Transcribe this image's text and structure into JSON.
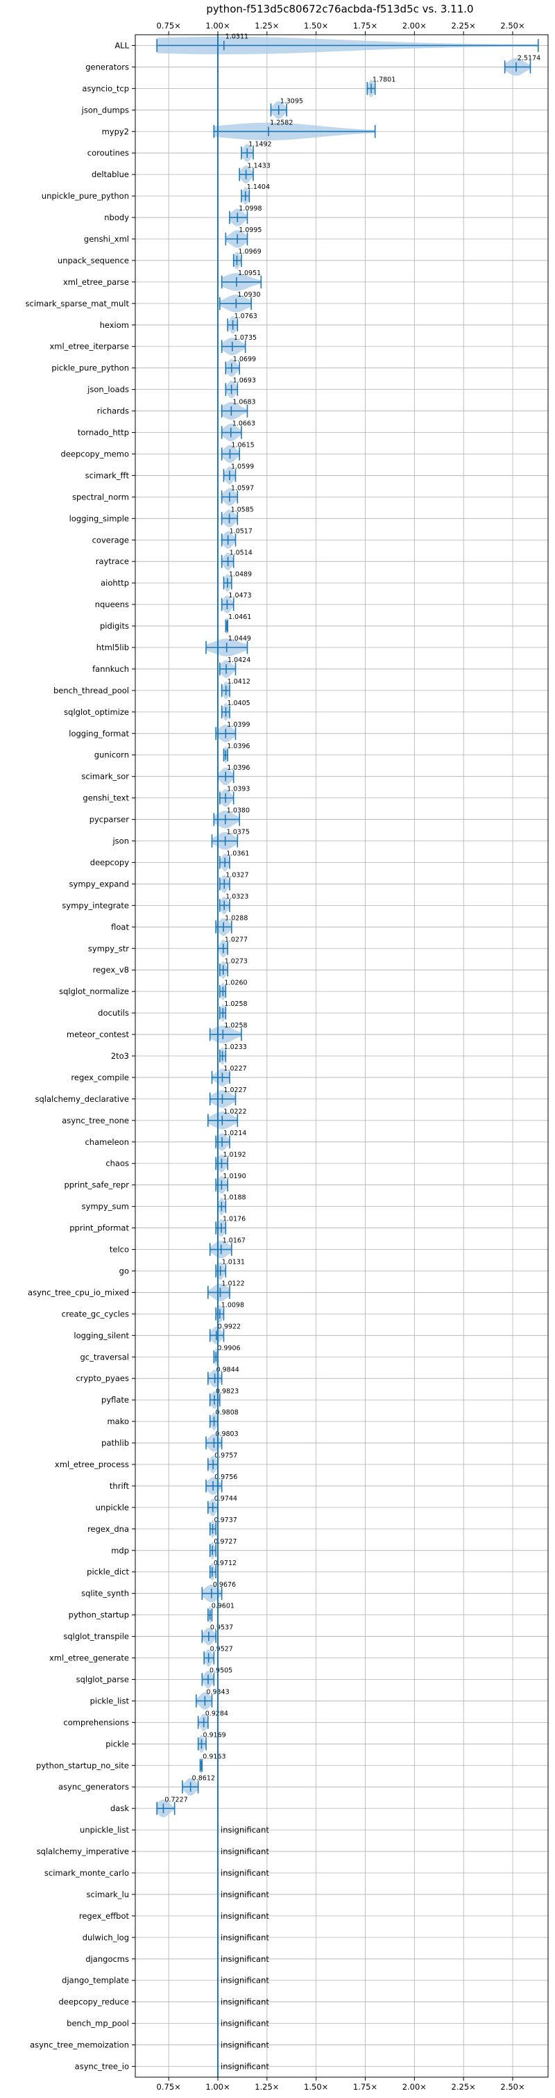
{
  "chart_data": {
    "type": "violin",
    "title": "python-f513d5c80672c76acbda-f513d5c vs. 3.11.0",
    "xlabel": "",
    "ylabel": "",
    "xlim": [
      0.58,
      2.68
    ],
    "xticks": [
      0.75,
      1.0,
      1.25,
      1.5,
      1.75,
      2.0,
      2.25,
      2.5
    ],
    "xtick_labels": [
      "0.75×",
      "1.00×",
      "1.25×",
      "1.50×",
      "1.75×",
      "2.00×",
      "2.25×",
      "2.50×"
    ],
    "reference_line": 1.0,
    "grid": true,
    "accent_color": "#1f77b4",
    "violin_color": "#a9c9e6",
    "insignificant_label": "insignificant",
    "benchmarks": [
      {
        "name": "ALL",
        "value": 1.0311,
        "min": 0.69,
        "max": 2.63,
        "label": "1.0311"
      },
      {
        "name": "generators",
        "value": 2.5174,
        "min": 2.46,
        "max": 2.59,
        "label": "2.5174"
      },
      {
        "name": "asyncio_tcp",
        "value": 1.7801,
        "min": 1.76,
        "max": 1.8,
        "label": "1.7801"
      },
      {
        "name": "json_dumps",
        "value": 1.3095,
        "min": 1.27,
        "max": 1.35,
        "label": "1.3095"
      },
      {
        "name": "mypy2",
        "value": 1.2582,
        "min": 0.98,
        "max": 1.8,
        "label": "1.2582"
      },
      {
        "name": "coroutines",
        "value": 1.1492,
        "min": 1.12,
        "max": 1.18,
        "label": "1.1492"
      },
      {
        "name": "deltablue",
        "value": 1.1433,
        "min": 1.11,
        "max": 1.18,
        "label": "1.1433"
      },
      {
        "name": "unpickle_pure_python",
        "value": 1.1404,
        "min": 1.12,
        "max": 1.16,
        "label": "1.1404"
      },
      {
        "name": "nbody",
        "value": 1.0998,
        "min": 1.06,
        "max": 1.15,
        "label": "1.0998"
      },
      {
        "name": "genshi_xml",
        "value": 1.0995,
        "min": 1.04,
        "max": 1.15,
        "label": "1.0995"
      },
      {
        "name": "unpack_sequence",
        "value": 1.0969,
        "min": 1.08,
        "max": 1.12,
        "label": "1.0969"
      },
      {
        "name": "xml_etree_parse",
        "value": 1.0951,
        "min": 1.02,
        "max": 1.22,
        "label": "1.0951"
      },
      {
        "name": "scimark_sparse_mat_mult",
        "value": 1.093,
        "min": 1.01,
        "max": 1.17,
        "label": "1.0930"
      },
      {
        "name": "hexiom",
        "value": 1.0763,
        "min": 1.05,
        "max": 1.1,
        "label": "1.0763"
      },
      {
        "name": "xml_etree_iterparse",
        "value": 1.0735,
        "min": 1.02,
        "max": 1.14,
        "label": "1.0735"
      },
      {
        "name": "pickle_pure_python",
        "value": 1.0699,
        "min": 1.04,
        "max": 1.11,
        "label": "1.0699"
      },
      {
        "name": "json_loads",
        "value": 1.0693,
        "min": 1.04,
        "max": 1.1,
        "label": "1.0693"
      },
      {
        "name": "richards",
        "value": 1.0683,
        "min": 1.02,
        "max": 1.15,
        "label": "1.0683"
      },
      {
        "name": "tornado_http",
        "value": 1.0663,
        "min": 1.02,
        "max": 1.12,
        "label": "1.0663"
      },
      {
        "name": "deepcopy_memo",
        "value": 1.0615,
        "min": 1.02,
        "max": 1.11,
        "label": "1.0615"
      },
      {
        "name": "scimark_fft",
        "value": 1.0599,
        "min": 1.03,
        "max": 1.09,
        "label": "1.0599"
      },
      {
        "name": "spectral_norm",
        "value": 1.0597,
        "min": 1.02,
        "max": 1.1,
        "label": "1.0597"
      },
      {
        "name": "logging_simple",
        "value": 1.0585,
        "min": 1.02,
        "max": 1.1,
        "label": "1.0585"
      },
      {
        "name": "coverage",
        "value": 1.0517,
        "min": 1.02,
        "max": 1.09,
        "label": "1.0517"
      },
      {
        "name": "raytrace",
        "value": 1.0514,
        "min": 1.02,
        "max": 1.08,
        "label": "1.0514"
      },
      {
        "name": "aiohttp",
        "value": 1.0489,
        "min": 1.03,
        "max": 1.07,
        "label": "1.0489"
      },
      {
        "name": "nqueens",
        "value": 1.0473,
        "min": 1.02,
        "max": 1.08,
        "label": "1.0473"
      },
      {
        "name": "pidigits",
        "value": 1.0461,
        "min": 1.04,
        "max": 1.05,
        "label": "1.0461"
      },
      {
        "name": "html5lib",
        "value": 1.0449,
        "min": 0.94,
        "max": 1.15,
        "label": "1.0449"
      },
      {
        "name": "fannkuch",
        "value": 1.0424,
        "min": 1.01,
        "max": 1.09,
        "label": "1.0424"
      },
      {
        "name": "bench_thread_pool",
        "value": 1.0412,
        "min": 1.02,
        "max": 1.06,
        "label": "1.0412"
      },
      {
        "name": "sqlglot_optimize",
        "value": 1.0405,
        "min": 1.02,
        "max": 1.06,
        "label": "1.0405"
      },
      {
        "name": "logging_format",
        "value": 1.0399,
        "min": 0.99,
        "max": 1.09,
        "label": "1.0399"
      },
      {
        "name": "gunicorn",
        "value": 1.0396,
        "min": 1.03,
        "max": 1.05,
        "label": "1.0396"
      },
      {
        "name": "scimark_sor",
        "value": 1.0396,
        "min": 1.0,
        "max": 1.08,
        "label": "1.0396"
      },
      {
        "name": "genshi_text",
        "value": 1.0393,
        "min": 1.01,
        "max": 1.08,
        "label": "1.0393"
      },
      {
        "name": "pycparser",
        "value": 1.038,
        "min": 0.98,
        "max": 1.11,
        "label": "1.0380"
      },
      {
        "name": "json",
        "value": 1.0375,
        "min": 0.97,
        "max": 1.1,
        "label": "1.0375"
      },
      {
        "name": "deepcopy",
        "value": 1.0361,
        "min": 1.01,
        "max": 1.06,
        "label": "1.0361"
      },
      {
        "name": "sympy_expand",
        "value": 1.0327,
        "min": 1.01,
        "max": 1.06,
        "label": "1.0327"
      },
      {
        "name": "sympy_integrate",
        "value": 1.0323,
        "min": 1.01,
        "max": 1.06,
        "label": "1.0323"
      },
      {
        "name": "float",
        "value": 1.0288,
        "min": 0.99,
        "max": 1.07,
        "label": "1.0288"
      },
      {
        "name": "sympy_str",
        "value": 1.0277,
        "min": 1.0,
        "max": 1.05,
        "label": "1.0277"
      },
      {
        "name": "regex_v8",
        "value": 1.0273,
        "min": 1.01,
        "max": 1.05,
        "label": "1.0273"
      },
      {
        "name": "sqlglot_normalize",
        "value": 1.026,
        "min": 1.01,
        "max": 1.04,
        "label": "1.0260"
      },
      {
        "name": "docutils",
        "value": 1.0258,
        "min": 1.01,
        "max": 1.04,
        "label": "1.0258"
      },
      {
        "name": "meteor_contest",
        "value": 1.0258,
        "min": 0.96,
        "max": 1.12,
        "label": "1.0258"
      },
      {
        "name": "2to3",
        "value": 1.0233,
        "min": 1.01,
        "max": 1.04,
        "label": "1.0233"
      },
      {
        "name": "regex_compile",
        "value": 1.0227,
        "min": 0.97,
        "max": 1.06,
        "label": "1.0227"
      },
      {
        "name": "sqlalchemy_declarative",
        "value": 1.0227,
        "min": 0.96,
        "max": 1.09,
        "label": "1.0227"
      },
      {
        "name": "async_tree_none",
        "value": 1.0222,
        "min": 0.95,
        "max": 1.1,
        "label": "1.0222"
      },
      {
        "name": "chameleon",
        "value": 1.0214,
        "min": 0.99,
        "max": 1.06,
        "label": "1.0214"
      },
      {
        "name": "chaos",
        "value": 1.0192,
        "min": 0.99,
        "max": 1.05,
        "label": "1.0192"
      },
      {
        "name": "pprint_safe_repr",
        "value": 1.019,
        "min": 0.99,
        "max": 1.05,
        "label": "1.0190"
      },
      {
        "name": "sympy_sum",
        "value": 1.0188,
        "min": 1.0,
        "max": 1.04,
        "label": "1.0188"
      },
      {
        "name": "pprint_pformat",
        "value": 1.0176,
        "min": 0.99,
        "max": 1.04,
        "label": "1.0176"
      },
      {
        "name": "telco",
        "value": 1.0167,
        "min": 0.96,
        "max": 1.07,
        "label": "1.0167"
      },
      {
        "name": "go",
        "value": 1.0131,
        "min": 0.99,
        "max": 1.04,
        "label": "1.0131"
      },
      {
        "name": "async_tree_cpu_io_mixed",
        "value": 1.0122,
        "min": 0.95,
        "max": 1.06,
        "label": "1.0122"
      },
      {
        "name": "create_gc_cycles",
        "value": 1.0098,
        "min": 0.99,
        "max": 1.03,
        "label": "1.0098"
      },
      {
        "name": "logging_silent",
        "value": 0.9922,
        "min": 0.96,
        "max": 1.03,
        "label": "0.9922"
      },
      {
        "name": "gc_traversal",
        "value": 0.9906,
        "min": 0.98,
        "max": 1.0,
        "label": "0.9906"
      },
      {
        "name": "crypto_pyaes",
        "value": 0.9844,
        "min": 0.95,
        "max": 1.02,
        "label": "0.9844"
      },
      {
        "name": "pyflate",
        "value": 0.9823,
        "min": 0.96,
        "max": 1.01,
        "label": "0.9823"
      },
      {
        "name": "mako",
        "value": 0.9808,
        "min": 0.96,
        "max": 1.0,
        "label": "0.9808"
      },
      {
        "name": "pathlib",
        "value": 0.9803,
        "min": 0.94,
        "max": 1.02,
        "label": "0.9803"
      },
      {
        "name": "xml_etree_process",
        "value": 0.9757,
        "min": 0.95,
        "max": 1.0,
        "label": "0.9757"
      },
      {
        "name": "thrift",
        "value": 0.9756,
        "min": 0.94,
        "max": 1.02,
        "label": "0.9756"
      },
      {
        "name": "unpickle",
        "value": 0.9744,
        "min": 0.95,
        "max": 1.0,
        "label": "0.9744"
      },
      {
        "name": "regex_dna",
        "value": 0.9737,
        "min": 0.96,
        "max": 0.99,
        "label": "0.9737"
      },
      {
        "name": "mdp",
        "value": 0.9727,
        "min": 0.96,
        "max": 0.99,
        "label": "0.9727"
      },
      {
        "name": "pickle_dict",
        "value": 0.9712,
        "min": 0.96,
        "max": 0.99,
        "label": "0.9712"
      },
      {
        "name": "sqlite_synth",
        "value": 0.9676,
        "min": 0.92,
        "max": 1.02,
        "label": "0.9676"
      },
      {
        "name": "python_startup",
        "value": 0.9601,
        "min": 0.95,
        "max": 0.97,
        "label": "0.9601"
      },
      {
        "name": "sqlglot_transpile",
        "value": 0.9537,
        "min": 0.92,
        "max": 0.99,
        "label": "0.9537"
      },
      {
        "name": "xml_etree_generate",
        "value": 0.9527,
        "min": 0.93,
        "max": 0.98,
        "label": "0.9527"
      },
      {
        "name": "sqlglot_parse",
        "value": 0.9505,
        "min": 0.92,
        "max": 0.98,
        "label": "0.9505"
      },
      {
        "name": "pickle_list",
        "value": 0.9343,
        "min": 0.89,
        "max": 0.97,
        "label": "0.9343"
      },
      {
        "name": "comprehensions",
        "value": 0.9284,
        "min": 0.9,
        "max": 0.95,
        "label": "0.9284"
      },
      {
        "name": "pickle",
        "value": 0.9169,
        "min": 0.9,
        "max": 0.94,
        "label": "0.9169"
      },
      {
        "name": "python_startup_no_site",
        "value": 0.9163,
        "min": 0.91,
        "max": 0.92,
        "label": "0.9163"
      },
      {
        "name": "async_generators",
        "value": 0.8612,
        "min": 0.82,
        "max": 0.9,
        "label": "0.8612"
      },
      {
        "name": "dask",
        "value": 0.7227,
        "min": 0.69,
        "max": 0.78,
        "label": "0.7227"
      },
      {
        "name": "unpickle_list",
        "insignificant": true
      },
      {
        "name": "sqlalchemy_imperative",
        "insignificant": true
      },
      {
        "name": "scimark_monte_carlo",
        "insignificant": true
      },
      {
        "name": "scimark_lu",
        "insignificant": true
      },
      {
        "name": "regex_effbot",
        "insignificant": true
      },
      {
        "name": "dulwich_log",
        "insignificant": true
      },
      {
        "name": "djangocms",
        "insignificant": true
      },
      {
        "name": "django_template",
        "insignificant": true
      },
      {
        "name": "deepcopy_reduce",
        "insignificant": true
      },
      {
        "name": "bench_mp_pool",
        "insignificant": true
      },
      {
        "name": "async_tree_memoization",
        "insignificant": true
      },
      {
        "name": "async_tree_io",
        "insignificant": true
      }
    ]
  }
}
